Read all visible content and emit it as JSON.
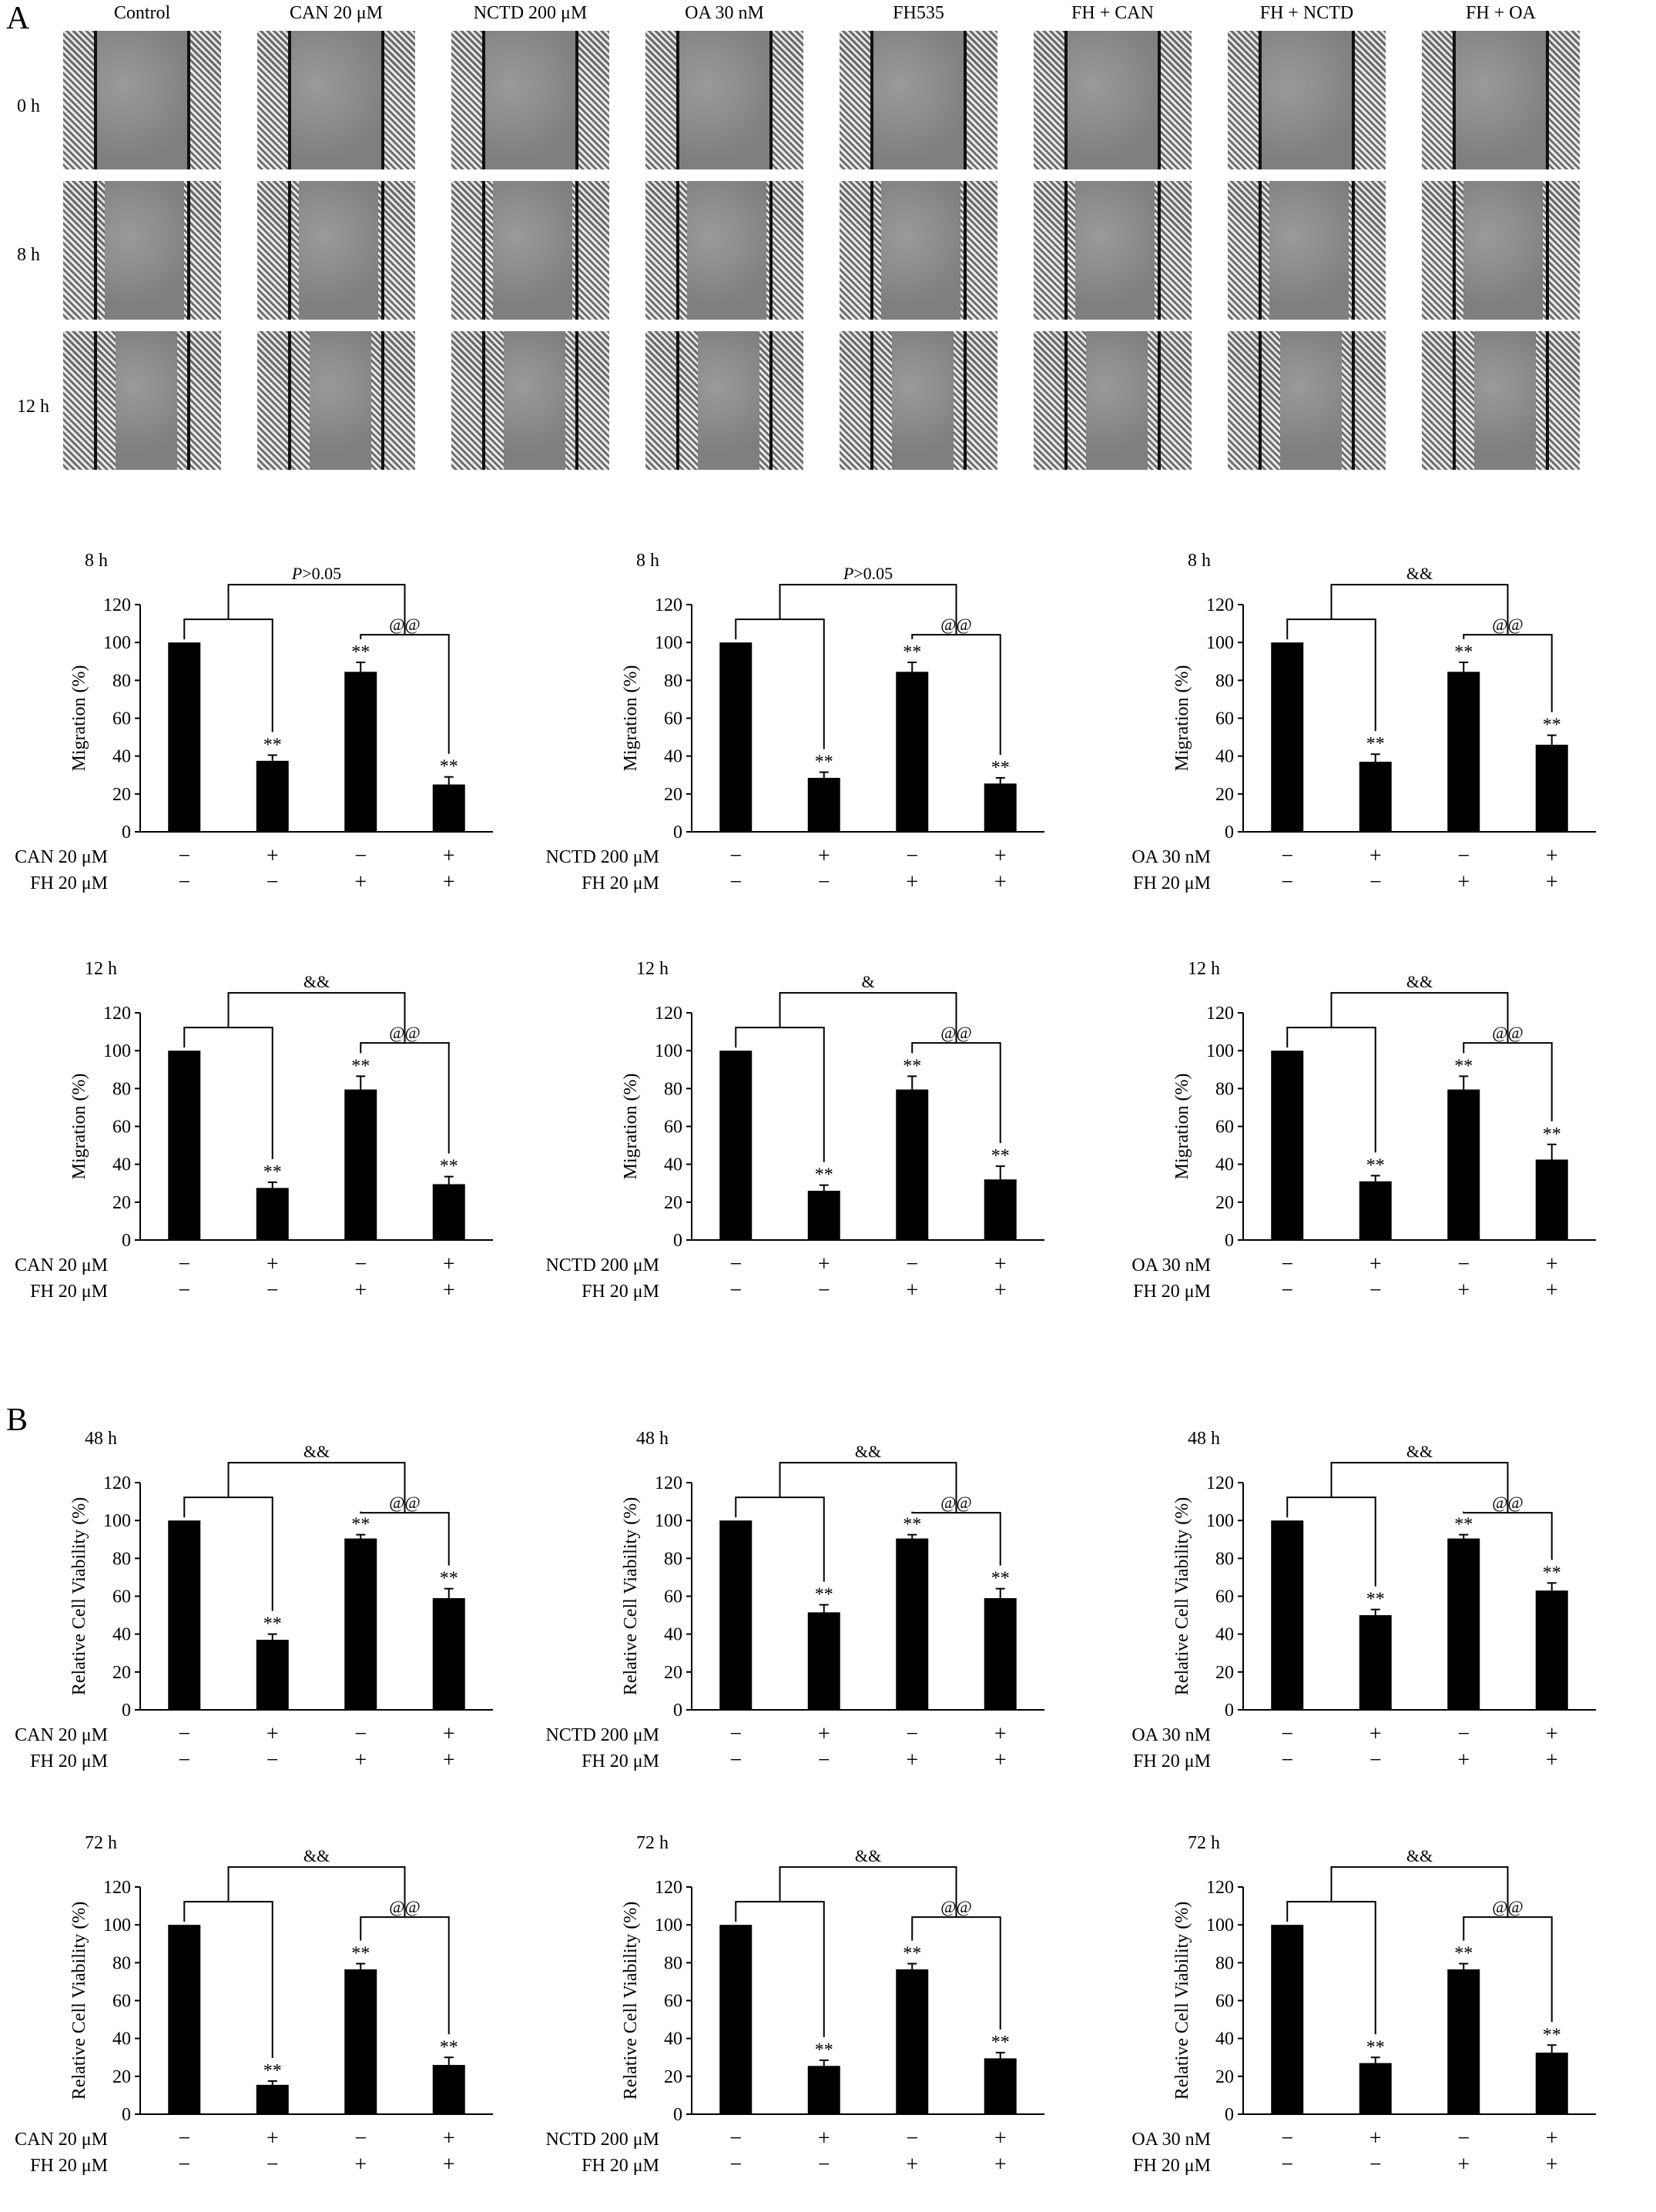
{
  "panels": {
    "a": "A",
    "b": "B"
  },
  "micrographs": {
    "columns": [
      "Control",
      "CAN 20 μM",
      "NCTD 200 μM",
      "OA 30 nM",
      "FH535",
      "FH + CAN",
      "FH + NCTD",
      "FH + OA"
    ],
    "rows": [
      "0 h",
      "8 h",
      "12 h"
    ]
  },
  "symbols": {
    "minus": "−",
    "plus": "+"
  },
  "chart_data": [
    {
      "type": "bar",
      "title": "8 h",
      "ylabel": "Migration (%)",
      "ylim": [
        0,
        120
      ],
      "yticks": [
        0,
        20,
        40,
        60,
        80,
        100,
        120
      ],
      "rows": [
        {
          "label": "CAN 20 μM",
          "signs": [
            "−",
            "+",
            "−",
            "+"
          ]
        },
        {
          "label": "FH 20 μM",
          "signs": [
            "−",
            "−",
            "+",
            "+"
          ]
        }
      ],
      "values": [
        100,
        37.5,
        84.5,
        25
      ],
      "errors": [
        0,
        3,
        5,
        4
      ],
      "stars": [
        "",
        "**",
        "**",
        "**"
      ],
      "bracket_outer": "P>0.05",
      "bracket_inner": "@@"
    },
    {
      "type": "bar",
      "title": "8 h",
      "ylabel": "Migration (%)",
      "ylim": [
        0,
        120
      ],
      "yticks": [
        0,
        20,
        40,
        60,
        80,
        100,
        120
      ],
      "rows": [
        {
          "label": "NCTD 200 μM",
          "signs": [
            "−",
            "+",
            "−",
            "+"
          ]
        },
        {
          "label": "FH 20 μM",
          "signs": [
            "−",
            "−",
            "+",
            "+"
          ]
        }
      ],
      "values": [
        100,
        28.5,
        84.5,
        25.5
      ],
      "errors": [
        0,
        3,
        5,
        3
      ],
      "stars": [
        "",
        "**",
        "**",
        "**"
      ],
      "bracket_outer": "P>0.05",
      "bracket_inner": "@@"
    },
    {
      "type": "bar",
      "title": "8 h",
      "ylabel": "Migration (%)",
      "ylim": [
        0,
        120
      ],
      "yticks": [
        0,
        20,
        40,
        60,
        80,
        100,
        120
      ],
      "rows": [
        {
          "label": "OA 30 nM",
          "signs": [
            "−",
            "+",
            "−",
            "+"
          ]
        },
        {
          "label": "FH 20 μM",
          "signs": [
            "−",
            "−",
            "+",
            "+"
          ]
        }
      ],
      "values": [
        100,
        37,
        84.5,
        46
      ],
      "errors": [
        0,
        4,
        5,
        5
      ],
      "stars": [
        "",
        "**",
        "**",
        "**"
      ],
      "bracket_outer": "&&",
      "bracket_inner": "@@"
    },
    {
      "type": "bar",
      "title": "12 h",
      "ylabel": "Migration (%)",
      "ylim": [
        0,
        120
      ],
      "yticks": [
        0,
        20,
        40,
        60,
        80,
        100,
        120
      ],
      "rows": [
        {
          "label": "CAN 20 μM",
          "signs": [
            "−",
            "+",
            "−",
            "+"
          ]
        },
        {
          "label": "FH 20 μM",
          "signs": [
            "−",
            "−",
            "+",
            "+"
          ]
        }
      ],
      "values": [
        100,
        27.5,
        79.5,
        29.5
      ],
      "errors": [
        0,
        3,
        7,
        4
      ],
      "stars": [
        "",
        "**",
        "**",
        "**"
      ],
      "bracket_outer": "&&",
      "bracket_inner": "@@"
    },
    {
      "type": "bar",
      "title": "12 h",
      "ylabel": "Migration (%)",
      "ylim": [
        0,
        120
      ],
      "yticks": [
        0,
        20,
        40,
        60,
        80,
        100,
        120
      ],
      "rows": [
        {
          "label": "NCTD 200 μM",
          "signs": [
            "−",
            "+",
            "−",
            "+"
          ]
        },
        {
          "label": "FH 20 μM",
          "signs": [
            "−",
            "−",
            "+",
            "+"
          ]
        }
      ],
      "values": [
        100,
        26,
        79.5,
        32
      ],
      "errors": [
        0,
        3,
        7,
        7
      ],
      "stars": [
        "",
        "**",
        "**",
        "**"
      ],
      "bracket_outer": "&",
      "bracket_inner": "@@"
    },
    {
      "type": "bar",
      "title": "12 h",
      "ylabel": "Migration (%)",
      "ylim": [
        0,
        120
      ],
      "yticks": [
        0,
        20,
        40,
        60,
        80,
        100,
        120
      ],
      "rows": [
        {
          "label": "OA 30 nM",
          "signs": [
            "−",
            "+",
            "−",
            "+"
          ]
        },
        {
          "label": "FH 20 μM",
          "signs": [
            "−",
            "−",
            "+",
            "+"
          ]
        }
      ],
      "values": [
        100,
        31,
        79.5,
        42.5
      ],
      "errors": [
        0,
        3,
        7,
        8
      ],
      "stars": [
        "",
        "**",
        "**",
        "**"
      ],
      "bracket_outer": "&&",
      "bracket_inner": "@@"
    },
    {
      "type": "bar",
      "title": "48 h",
      "ylabel": "Relative Cell Viability (%)",
      "ylim": [
        0,
        120
      ],
      "yticks": [
        0,
        20,
        40,
        60,
        80,
        100,
        120
      ],
      "rows": [
        {
          "label": "CAN 20 μM",
          "signs": [
            "−",
            "+",
            "−",
            "+"
          ]
        },
        {
          "label": "FH 20 μM",
          "signs": [
            "−",
            "−",
            "+",
            "+"
          ]
        }
      ],
      "values": [
        100,
        37,
        90.5,
        59
      ],
      "errors": [
        0,
        3,
        2,
        5
      ],
      "stars": [
        "",
        "**",
        "**",
        "**"
      ],
      "bracket_outer": "&&",
      "bracket_inner": "@@"
    },
    {
      "type": "bar",
      "title": "48 h",
      "ylabel": "Relative Cell Viability (%)",
      "ylim": [
        0,
        120
      ],
      "yticks": [
        0,
        20,
        40,
        60,
        80,
        100,
        120
      ],
      "rows": [
        {
          "label": "NCTD 200 μM",
          "signs": [
            "−",
            "+",
            "−",
            "+"
          ]
        },
        {
          "label": "FH 20 μM",
          "signs": [
            "−",
            "−",
            "+",
            "+"
          ]
        }
      ],
      "values": [
        100,
        51.5,
        90.5,
        59
      ],
      "errors": [
        0,
        4,
        2,
        5
      ],
      "stars": [
        "",
        "**",
        "**",
        "**"
      ],
      "bracket_outer": "&&",
      "bracket_inner": "@@"
    },
    {
      "type": "bar",
      "title": "48 h",
      "ylabel": "Relative Cell Viability (%)",
      "ylim": [
        0,
        120
      ],
      "yticks": [
        0,
        20,
        40,
        60,
        80,
        100,
        120
      ],
      "rows": [
        {
          "label": "OA 30 nM",
          "signs": [
            "−",
            "+",
            "−",
            "+"
          ]
        },
        {
          "label": "FH 20 μM",
          "signs": [
            "−",
            "−",
            "+",
            "+"
          ]
        }
      ],
      "values": [
        100,
        50,
        90.5,
        63
      ],
      "errors": [
        0,
        3,
        2,
        4
      ],
      "stars": [
        "",
        "**",
        "**",
        "**"
      ],
      "bracket_outer": "&&",
      "bracket_inner": "@@"
    },
    {
      "type": "bar",
      "title": "72 h",
      "ylabel": "Relative Cell Viability (%)",
      "ylim": [
        0,
        120
      ],
      "yticks": [
        0,
        20,
        40,
        60,
        80,
        100,
        120
      ],
      "rows": [
        {
          "label": "CAN 20 μM",
          "signs": [
            "−",
            "+",
            "−",
            "+"
          ]
        },
        {
          "label": "FH 20 μM",
          "signs": [
            "−",
            "−",
            "+",
            "+"
          ]
        }
      ],
      "values": [
        100,
        15.5,
        76.5,
        26
      ],
      "errors": [
        0,
        2,
        3,
        4
      ],
      "stars": [
        "",
        "**",
        "**",
        "**"
      ],
      "bracket_outer": "&&",
      "bracket_inner": "@@"
    },
    {
      "type": "bar",
      "title": "72 h",
      "ylabel": "Relative Cell Viability (%)",
      "ylim": [
        0,
        120
      ],
      "yticks": [
        0,
        20,
        40,
        60,
        80,
        100,
        120
      ],
      "rows": [
        {
          "label": "NCTD 200 μM",
          "signs": [
            "−",
            "+",
            "−",
            "+"
          ]
        },
        {
          "label": "FH 20 μM",
          "signs": [
            "−",
            "−",
            "+",
            "+"
          ]
        }
      ],
      "values": [
        100,
        25.5,
        76.5,
        29.5
      ],
      "errors": [
        0,
        3,
        3,
        3
      ],
      "stars": [
        "",
        "**",
        "**",
        "**"
      ],
      "bracket_outer": "&&",
      "bracket_inner": "@@"
    },
    {
      "type": "bar",
      "title": "72 h",
      "ylabel": "Relative Cell Viability (%)",
      "ylim": [
        0,
        120
      ],
      "yticks": [
        0,
        20,
        40,
        60,
        80,
        100,
        120
      ],
      "rows": [
        {
          "label": "OA 30 nM",
          "signs": [
            "−",
            "+",
            "−",
            "+"
          ]
        },
        {
          "label": "FH 20 μM",
          "signs": [
            "−",
            "−",
            "+",
            "+"
          ]
        }
      ],
      "values": [
        100,
        27,
        76.5,
        32.5
      ],
      "errors": [
        0,
        3,
        3,
        4
      ],
      "stars": [
        "",
        "**",
        "**",
        "**"
      ],
      "bracket_outer": "&&",
      "bracket_inner": "@@"
    }
  ]
}
